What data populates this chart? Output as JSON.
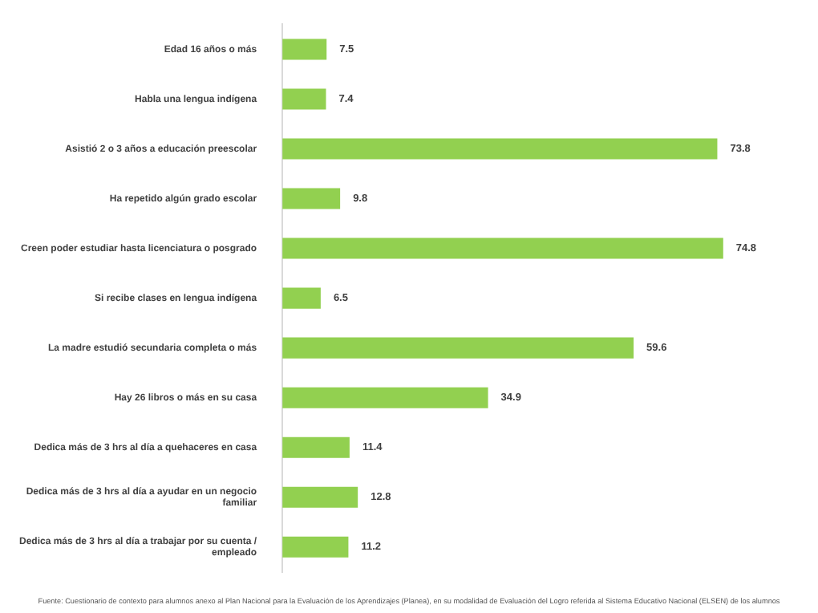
{
  "chart_data": {
    "type": "bar",
    "orientation": "horizontal",
    "categories": [
      "Edad 16 años o más",
      "Habla una lengua indígena",
      "Asistió 2 o 3 años a educación preescolar",
      "Ha repetido algún grado escolar",
      "Creen poder estudiar hasta licenciatura o posgrado",
      "Si recibe clases en lengua indígena",
      "La madre estudió secundaria completa o más",
      "Hay 26 libros o más en su casa",
      "Dedica más de 3 hrs al día a quehaceres en casa",
      "Dedica más de 3 hrs al día a ayudar en un negocio familiar",
      "Dedica más de 3 hrs al día a trabajar por su cuenta / empleado"
    ],
    "values": [
      7.5,
      7.4,
      73.8,
      9.8,
      74.8,
      6.5,
      59.6,
      34.9,
      11.4,
      12.8,
      11.2
    ],
    "color": "#92d050",
    "data_labels": true,
    "legend": false,
    "annotations": [
      "Fuente: Cuestionario de contexto para alumnos anexo al Plan Nacional para la Evaluación de los Aprendizajes (Planea), en su modalidad de Evaluación del Logro referida al Sistema Educativo Nacional (ELSEN) de los alumnos"
    ]
  }
}
